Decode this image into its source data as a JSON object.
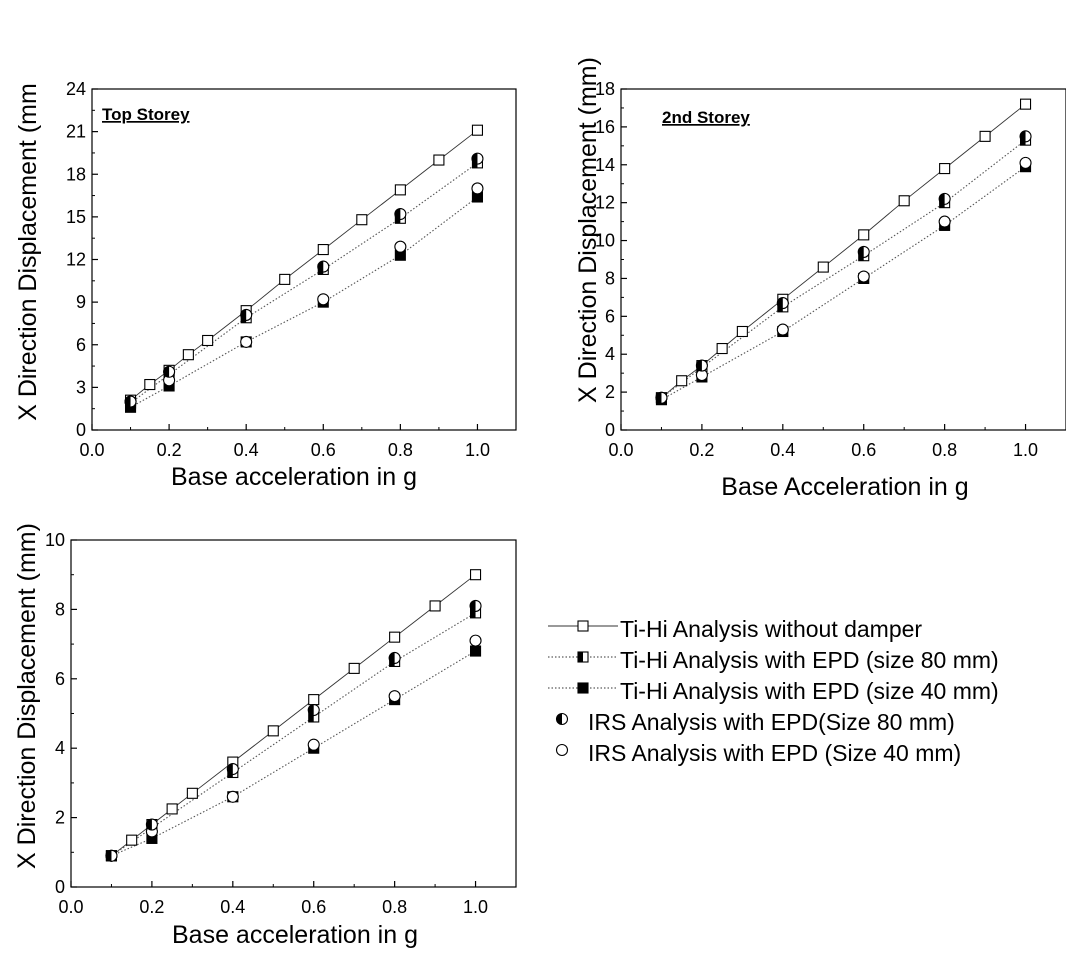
{
  "legend": {
    "placement": "right of bottom chart",
    "entries": [
      {
        "series": "tihi_no_damper",
        "label": "Ti-Hi Analysis without damper",
        "marker": "square-open",
        "line": "solid"
      },
      {
        "series": "tihi_epd80",
        "label": "Ti-Hi Analysis with EPD (size 80 mm)",
        "marker": "square-half",
        "line": "dotted"
      },
      {
        "series": "tihi_epd40",
        "label": "Ti-Hi Analysis with EPD (size 40 mm)",
        "marker": "square-filled",
        "line": "dotted"
      },
      {
        "series": "irs_epd80",
        "label": "IRS Analysis with EPD(Size 80 mm)",
        "marker": "circle-half",
        "line": "none"
      },
      {
        "series": "irs_epd40",
        "label": "IRS Analysis with EPD (Size 40 mm)",
        "marker": "circle-open",
        "line": "none"
      }
    ]
  },
  "chart_data": [
    {
      "type": "line",
      "panel": "top-left",
      "title": "Top Storey",
      "xlabel": "Base acceleration in g",
      "ylabel": "X Direction Displacement (mm",
      "xlim": [
        0.0,
        1.1
      ],
      "ylim": [
        0,
        24
      ],
      "xticks": [
        "0.0",
        "0.2",
        "0.4",
        "0.6",
        "0.8",
        "1.0"
      ],
      "yticks": [
        "0",
        "3",
        "6",
        "9",
        "12",
        "15",
        "18",
        "21",
        "24"
      ],
      "grid": false,
      "series": [
        {
          "key": "tihi_no_damper",
          "x": [
            0.1,
            0.15,
            0.2,
            0.25,
            0.3,
            0.4,
            0.5,
            0.6,
            0.7,
            0.8,
            0.9,
            1.0
          ],
          "y": [
            2.1,
            3.2,
            4.2,
            5.3,
            6.3,
            8.4,
            10.6,
            12.7,
            14.8,
            16.9,
            19.0,
            21.1
          ]
        },
        {
          "key": "tihi_epd80",
          "x": [
            0.1,
            0.2,
            0.4,
            0.6,
            0.8,
            1.0
          ],
          "y": [
            1.9,
            3.9,
            7.9,
            11.3,
            14.9,
            18.8
          ]
        },
        {
          "key": "tihi_epd40",
          "x": [
            0.1,
            0.2,
            0.4,
            0.6,
            0.8,
            1.0
          ],
          "y": [
            1.6,
            3.1,
            6.2,
            9.0,
            12.3,
            16.4
          ]
        },
        {
          "key": "irs_epd80",
          "x": [
            0.1,
            0.2,
            0.4,
            0.6,
            0.8,
            1.0
          ],
          "y": [
            2.0,
            4.1,
            8.1,
            11.5,
            15.2,
            19.1
          ]
        },
        {
          "key": "irs_epd40",
          "x": [
            0.1,
            0.2,
            0.4,
            0.6,
            0.8,
            1.0
          ],
          "y": [
            2.0,
            3.5,
            6.2,
            9.2,
            12.9,
            17.0
          ]
        }
      ]
    },
    {
      "type": "line",
      "panel": "top-right",
      "title": "2nd Storey",
      "xlabel": "Base Acceleration in g",
      "ylabel": "X Direction Displacement (mm)",
      "xlim": [
        0.0,
        1.1
      ],
      "ylim": [
        0,
        18
      ],
      "xticks": [
        "0.0",
        "0.2",
        "0.4",
        "0.6",
        "0.8",
        "1.0"
      ],
      "yticks": [
        "0",
        "2",
        "4",
        "6",
        "8",
        "10",
        "12",
        "14",
        "16",
        "18"
      ],
      "grid": false,
      "series": [
        {
          "key": "tihi_no_damper",
          "x": [
            0.1,
            0.15,
            0.2,
            0.25,
            0.3,
            0.4,
            0.5,
            0.6,
            0.7,
            0.8,
            0.9,
            1.0
          ],
          "y": [
            1.7,
            2.6,
            3.4,
            4.3,
            5.2,
            6.9,
            8.6,
            10.3,
            12.1,
            13.8,
            15.5,
            17.2
          ]
        },
        {
          "key": "tihi_epd80",
          "x": [
            0.1,
            0.2,
            0.4,
            0.6,
            0.8,
            1.0
          ],
          "y": [
            1.7,
            3.3,
            6.5,
            9.2,
            12.0,
            15.3
          ]
        },
        {
          "key": "tihi_epd40",
          "x": [
            0.1,
            0.2,
            0.4,
            0.6,
            0.8,
            1.0
          ],
          "y": [
            1.6,
            2.8,
            5.2,
            8.0,
            10.8,
            13.9
          ]
        },
        {
          "key": "irs_epd80",
          "x": [
            0.1,
            0.2,
            0.4,
            0.6,
            0.8,
            1.0
          ],
          "y": [
            1.7,
            3.4,
            6.7,
            9.4,
            12.2,
            15.5
          ]
        },
        {
          "key": "irs_epd40",
          "x": [
            0.1,
            0.2,
            0.4,
            0.6,
            0.8,
            1.0
          ],
          "y": [
            1.7,
            2.9,
            5.3,
            8.1,
            11.0,
            14.1
          ]
        }
      ]
    },
    {
      "type": "line",
      "panel": "bottom-left",
      "title": "",
      "xlabel": "Base acceleration in g",
      "ylabel": "X Direction Displacement (mm)",
      "xlim": [
        0.0,
        1.1
      ],
      "ylim": [
        0,
        10
      ],
      "xticks": [
        "0.0",
        "0.2",
        "0.4",
        "0.6",
        "0.8",
        "1.0"
      ],
      "yticks": [
        "0",
        "2",
        "4",
        "6",
        "8",
        "10"
      ],
      "grid": false,
      "series": [
        {
          "key": "tihi_no_damper",
          "x": [
            0.1,
            0.15,
            0.2,
            0.25,
            0.3,
            0.4,
            0.5,
            0.6,
            0.7,
            0.8,
            0.9,
            1.0
          ],
          "y": [
            0.9,
            1.35,
            1.8,
            2.25,
            2.7,
            3.6,
            4.5,
            5.4,
            6.3,
            7.2,
            8.1,
            9.0
          ]
        },
        {
          "key": "tihi_epd80",
          "x": [
            0.1,
            0.2,
            0.4,
            0.6,
            0.8,
            1.0
          ],
          "y": [
            0.9,
            1.7,
            3.3,
            4.9,
            6.5,
            7.9
          ]
        },
        {
          "key": "tihi_epd40",
          "x": [
            0.1,
            0.2,
            0.4,
            0.6,
            0.8,
            1.0
          ],
          "y": [
            0.9,
            1.4,
            2.6,
            4.0,
            5.4,
            6.8
          ]
        },
        {
          "key": "irs_epd80",
          "x": [
            0.1,
            0.2,
            0.4,
            0.6,
            0.8,
            1.0
          ],
          "y": [
            0.9,
            1.8,
            3.4,
            5.1,
            6.6,
            8.1
          ]
        },
        {
          "key": "irs_epd40",
          "x": [
            0.1,
            0.2,
            0.4,
            0.6,
            0.8,
            1.0
          ],
          "y": [
            0.9,
            1.6,
            2.6,
            4.1,
            5.5,
            7.1
          ]
        }
      ]
    }
  ]
}
